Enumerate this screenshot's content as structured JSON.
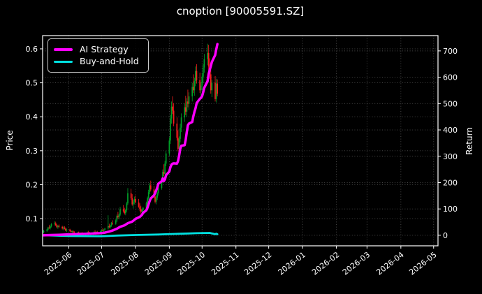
{
  "title": "cnoption [90005591.SZ]",
  "legend": {
    "items": [
      {
        "label": "AI Strategy",
        "color": "#ff00ff"
      },
      {
        "label": "Buy-and-Hold",
        "color": "#00e0e0"
      }
    ]
  },
  "chart_data": {
    "type": "candlestick+line",
    "title": "cnoption [90005591.SZ]",
    "grid": true,
    "legend_position": "upper-left",
    "x_axis": {
      "range": [
        "2025-05-08",
        "2026-05-05"
      ],
      "tick_labels": [
        "2025-06",
        "2025-07",
        "2025-08",
        "2025-09",
        "2025-10",
        "2025-11",
        "2025-12",
        "2026-01",
        "2026-02",
        "2026-03",
        "2026-04",
        "2026-05"
      ]
    },
    "price_axis": {
      "label": "Price",
      "side": "left",
      "tick_labels": [
        "0.1",
        "0.2",
        "0.3",
        "0.4",
        "0.5",
        "0.6"
      ],
      "ticks": [
        0.1,
        0.2,
        0.3,
        0.4,
        0.5,
        0.6
      ],
      "range": [
        0.02,
        0.639
      ]
    },
    "return_axis": {
      "label": "Return",
      "side": "right",
      "ticks": [
        0,
        100,
        200,
        300,
        400,
        500,
        600,
        700
      ],
      "range": [
        -40,
        758
      ]
    },
    "colors": {
      "up_candle": "#00a028",
      "down_candle": "#fa1e1e",
      "grid": "rgba(255,255,255,0.30)",
      "spine": "#ffffff",
      "background": "#000000",
      "text": "#ffffff"
    },
    "candle_columns": [
      "date",
      "open",
      "high",
      "low",
      "close"
    ],
    "candles": [
      [
        "2025-05-09",
        0.06,
        0.067,
        0.057,
        0.064
      ],
      [
        "2025-05-12",
        0.064,
        0.07,
        0.061,
        0.068
      ],
      [
        "2025-05-13",
        0.068,
        0.076,
        0.065,
        0.074
      ],
      [
        "2025-05-14",
        0.074,
        0.082,
        0.07,
        0.072
      ],
      [
        "2025-05-15",
        0.072,
        0.079,
        0.068,
        0.077
      ],
      [
        "2025-05-16",
        0.077,
        0.087,
        0.074,
        0.084
      ],
      [
        "2025-05-19",
        0.084,
        0.092,
        0.08,
        0.086
      ],
      [
        "2025-05-20",
        0.086,
        0.091,
        0.078,
        0.081
      ],
      [
        "2025-05-21",
        0.081,
        0.085,
        0.072,
        0.075
      ],
      [
        "2025-05-22",
        0.075,
        0.081,
        0.07,
        0.079
      ],
      [
        "2025-05-23",
        0.079,
        0.083,
        0.073,
        0.076
      ],
      [
        "2025-05-26",
        0.076,
        0.079,
        0.068,
        0.071
      ],
      [
        "2025-05-27",
        0.071,
        0.077,
        0.066,
        0.074
      ],
      [
        "2025-05-28",
        0.074,
        0.078,
        0.068,
        0.07
      ],
      [
        "2025-05-29",
        0.07,
        0.074,
        0.063,
        0.066
      ],
      [
        "2025-05-30",
        0.066,
        0.071,
        0.061,
        0.068
      ],
      [
        "2025-06-02",
        0.068,
        0.07,
        0.062,
        0.064
      ],
      [
        "2025-06-03",
        0.064,
        0.067,
        0.059,
        0.061
      ],
      [
        "2025-06-04",
        0.061,
        0.065,
        0.057,
        0.063
      ],
      [
        "2025-06-05",
        0.063,
        0.066,
        0.058,
        0.06
      ],
      [
        "2025-06-06",
        0.06,
        0.063,
        0.055,
        0.057
      ],
      [
        "2025-06-09",
        0.057,
        0.061,
        0.054,
        0.059
      ],
      [
        "2025-06-10",
        0.059,
        0.062,
        0.056,
        0.057
      ],
      [
        "2025-06-11",
        0.057,
        0.06,
        0.054,
        0.056
      ],
      [
        "2025-06-12",
        0.056,
        0.059,
        0.053,
        0.058
      ],
      [
        "2025-06-13",
        0.058,
        0.061,
        0.055,
        0.056
      ],
      [
        "2025-06-16",
        0.056,
        0.058,
        0.053,
        0.055
      ],
      [
        "2025-06-17",
        0.055,
        0.059,
        0.053,
        0.057
      ],
      [
        "2025-06-18",
        0.057,
        0.062,
        0.055,
        0.06
      ],
      [
        "2025-06-19",
        0.06,
        0.064,
        0.057,
        0.058
      ],
      [
        "2025-06-20",
        0.058,
        0.061,
        0.055,
        0.057
      ],
      [
        "2025-06-23",
        0.057,
        0.06,
        0.054,
        0.058
      ],
      [
        "2025-06-24",
        0.058,
        0.063,
        0.056,
        0.061
      ],
      [
        "2025-06-25",
        0.061,
        0.066,
        0.058,
        0.059
      ],
      [
        "2025-06-26",
        0.059,
        0.063,
        0.056,
        0.061
      ],
      [
        "2025-06-27",
        0.061,
        0.064,
        0.058,
        0.06
      ],
      [
        "2025-06-30",
        0.06,
        0.065,
        0.058,
        0.063
      ],
      [
        "2025-07-01",
        0.063,
        0.068,
        0.06,
        0.066
      ],
      [
        "2025-07-02",
        0.066,
        0.072,
        0.063,
        0.064
      ],
      [
        "2025-07-03",
        0.064,
        0.069,
        0.061,
        0.067
      ],
      [
        "2025-07-04",
        0.067,
        0.073,
        0.064,
        0.071
      ],
      [
        "2025-07-07",
        0.071,
        0.11,
        0.068,
        0.078
      ],
      [
        "2025-07-08",
        0.078,
        0.085,
        0.072,
        0.075
      ],
      [
        "2025-07-09",
        0.075,
        0.082,
        0.071,
        0.08
      ],
      [
        "2025-07-10",
        0.08,
        0.09,
        0.076,
        0.087
      ],
      [
        "2025-07-11",
        0.087,
        0.095,
        0.082,
        0.085
      ],
      [
        "2025-07-14",
        0.085,
        0.098,
        0.082,
        0.095
      ],
      [
        "2025-07-15",
        0.095,
        0.112,
        0.09,
        0.108
      ],
      [
        "2025-07-16",
        0.108,
        0.12,
        0.1,
        0.104
      ],
      [
        "2025-07-17",
        0.104,
        0.115,
        0.098,
        0.112
      ],
      [
        "2025-07-18",
        0.112,
        0.135,
        0.108,
        0.128
      ],
      [
        "2025-07-21",
        0.128,
        0.14,
        0.118,
        0.122
      ],
      [
        "2025-07-22",
        0.122,
        0.132,
        0.112,
        0.116
      ],
      [
        "2025-07-23",
        0.116,
        0.128,
        0.11,
        0.125
      ],
      [
        "2025-07-24",
        0.125,
        0.15,
        0.12,
        0.145
      ],
      [
        "2025-07-25",
        0.145,
        0.19,
        0.14,
        0.175
      ],
      [
        "2025-07-28",
        0.175,
        0.188,
        0.155,
        0.16
      ],
      [
        "2025-07-29",
        0.16,
        0.172,
        0.138,
        0.142
      ],
      [
        "2025-07-30",
        0.142,
        0.155,
        0.13,
        0.15
      ],
      [
        "2025-07-31",
        0.15,
        0.165,
        0.142,
        0.158
      ],
      [
        "2025-08-01",
        0.158,
        0.168,
        0.145,
        0.148
      ],
      [
        "2025-08-04",
        0.148,
        0.158,
        0.132,
        0.135
      ],
      [
        "2025-08-05",
        0.135,
        0.145,
        0.122,
        0.128
      ],
      [
        "2025-08-06",
        0.128,
        0.138,
        0.115,
        0.12
      ],
      [
        "2025-08-07",
        0.12,
        0.13,
        0.112,
        0.126
      ],
      [
        "2025-08-08",
        0.126,
        0.135,
        0.118,
        0.132
      ],
      [
        "2025-08-11",
        0.132,
        0.15,
        0.128,
        0.146
      ],
      [
        "2025-08-12",
        0.146,
        0.165,
        0.14,
        0.16
      ],
      [
        "2025-08-13",
        0.16,
        0.185,
        0.155,
        0.178
      ],
      [
        "2025-08-14",
        0.178,
        0.205,
        0.172,
        0.198
      ],
      [
        "2025-08-15",
        0.198,
        0.212,
        0.18,
        0.186
      ],
      [
        "2025-08-18",
        0.186,
        0.196,
        0.16,
        0.165
      ],
      [
        "2025-08-19",
        0.165,
        0.175,
        0.145,
        0.15
      ],
      [
        "2025-08-20",
        0.15,
        0.168,
        0.142,
        0.162
      ],
      [
        "2025-08-21",
        0.162,
        0.18,
        0.155,
        0.175
      ],
      [
        "2025-08-22",
        0.175,
        0.195,
        0.168,
        0.19
      ],
      [
        "2025-08-25",
        0.19,
        0.22,
        0.185,
        0.212
      ],
      [
        "2025-08-26",
        0.212,
        0.245,
        0.205,
        0.238
      ],
      [
        "2025-08-27",
        0.238,
        0.26,
        0.225,
        0.232
      ],
      [
        "2025-08-28",
        0.232,
        0.27,
        0.228,
        0.262
      ],
      [
        "2025-08-29",
        0.262,
        0.3,
        0.255,
        0.292
      ],
      [
        "2025-09-01",
        0.292,
        0.34,
        0.285,
        0.33
      ],
      [
        "2025-09-02",
        0.33,
        0.405,
        0.32,
        0.395
      ],
      [
        "2025-09-03",
        0.395,
        0.445,
        0.38,
        0.43
      ],
      [
        "2025-09-04",
        0.43,
        0.46,
        0.408,
        0.418
      ],
      [
        "2025-09-05",
        0.418,
        0.44,
        0.372,
        0.38
      ],
      [
        "2025-09-08",
        0.38,
        0.398,
        0.33,
        0.338
      ],
      [
        "2025-09-09",
        0.338,
        0.36,
        0.298,
        0.305
      ],
      [
        "2025-09-10",
        0.305,
        0.342,
        0.295,
        0.335
      ],
      [
        "2025-09-11",
        0.335,
        0.38,
        0.325,
        0.368
      ],
      [
        "2025-09-12",
        0.368,
        0.41,
        0.355,
        0.398
      ],
      [
        "2025-09-15",
        0.398,
        0.44,
        0.385,
        0.428
      ],
      [
        "2025-09-16",
        0.428,
        0.462,
        0.405,
        0.415
      ],
      [
        "2025-09-17",
        0.415,
        0.455,
        0.4,
        0.445
      ],
      [
        "2025-09-18",
        0.445,
        0.48,
        0.428,
        0.438
      ],
      [
        "2025-09-19",
        0.438,
        0.472,
        0.42,
        0.46
      ],
      [
        "2025-09-22",
        0.46,
        0.5,
        0.445,
        0.488
      ],
      [
        "2025-09-23",
        0.488,
        0.525,
        0.47,
        0.478
      ],
      [
        "2025-09-24",
        0.478,
        0.515,
        0.462,
        0.505
      ],
      [
        "2025-09-25",
        0.505,
        0.548,
        0.49,
        0.535
      ],
      [
        "2025-09-26",
        0.535,
        0.555,
        0.498,
        0.508
      ],
      [
        "2025-09-29",
        0.508,
        0.53,
        0.47,
        0.478
      ],
      [
        "2025-09-30",
        0.478,
        0.502,
        0.458,
        0.492
      ],
      [
        "2025-10-01",
        0.492,
        0.528,
        0.478,
        0.518
      ],
      [
        "2025-10-02",
        0.518,
        0.555,
        0.5,
        0.545
      ],
      [
        "2025-10-03",
        0.545,
        0.585,
        0.53,
        0.57
      ],
      [
        "2025-10-06",
        0.57,
        0.615,
        0.552,
        0.588
      ],
      [
        "2025-10-07",
        0.588,
        0.612,
        0.538,
        0.548
      ],
      [
        "2025-10-08",
        0.548,
        0.572,
        0.512,
        0.525
      ],
      [
        "2025-10-09",
        0.525,
        0.54,
        0.468,
        0.478
      ],
      [
        "2025-10-10",
        0.478,
        0.508,
        0.458,
        0.5
      ],
      [
        "2025-10-13",
        0.5,
        0.52,
        0.445,
        0.452
      ],
      [
        "2025-10-14",
        0.452,
        0.512,
        0.442,
        0.498
      ],
      [
        "2025-10-15",
        0.498,
        0.51,
        0.46,
        0.468
      ]
    ],
    "series": [
      {
        "name": "AI Strategy",
        "axis": "return",
        "color": "#ff00ff",
        "width": 3.5,
        "points": [
          [
            "2025-05-09",
            0
          ],
          [
            "2025-05-16",
            1
          ],
          [
            "2025-05-23",
            2
          ],
          [
            "2025-05-30",
            3
          ],
          [
            "2025-06-06",
            4
          ],
          [
            "2025-06-13",
            5
          ],
          [
            "2025-06-20",
            6
          ],
          [
            "2025-06-30",
            8
          ],
          [
            "2025-07-04",
            10
          ],
          [
            "2025-07-08",
            14
          ],
          [
            "2025-07-11",
            18
          ],
          [
            "2025-07-15",
            25
          ],
          [
            "2025-07-18",
            32
          ],
          [
            "2025-07-22",
            38
          ],
          [
            "2025-07-25",
            46
          ],
          [
            "2025-07-29",
            52
          ],
          [
            "2025-07-31",
            58
          ],
          [
            "2025-08-01",
            62
          ],
          [
            "2025-08-05",
            70
          ],
          [
            "2025-08-07",
            78
          ],
          [
            "2025-08-08",
            85
          ],
          [
            "2025-08-11",
            95
          ],
          [
            "2025-08-12",
            105
          ],
          [
            "2025-08-13",
            118
          ],
          [
            "2025-08-14",
            130
          ],
          [
            "2025-08-15",
            140
          ],
          [
            "2025-08-18",
            152
          ],
          [
            "2025-08-19",
            160
          ],
          [
            "2025-08-20",
            170
          ],
          [
            "2025-08-21",
            182
          ],
          [
            "2025-08-22",
            196
          ],
          [
            "2025-08-25",
            205
          ],
          [
            "2025-08-26",
            216
          ],
          [
            "2025-08-27",
            206
          ],
          [
            "2025-08-28",
            212
          ],
          [
            "2025-08-29",
            228
          ],
          [
            "2025-09-01",
            242
          ],
          [
            "2025-09-02",
            258
          ],
          [
            "2025-09-03",
            268
          ],
          [
            "2025-09-04",
            272
          ],
          [
            "2025-09-05",
            273
          ],
          [
            "2025-09-08",
            272
          ],
          [
            "2025-09-09",
            282
          ],
          [
            "2025-09-10",
            302
          ],
          [
            "2025-09-11",
            328
          ],
          [
            "2025-09-12",
            340
          ],
          [
            "2025-09-15",
            342
          ],
          [
            "2025-09-16",
            362
          ],
          [
            "2025-09-17",
            392
          ],
          [
            "2025-09-18",
            418
          ],
          [
            "2025-09-19",
            424
          ],
          [
            "2025-09-22",
            430
          ],
          [
            "2025-09-23",
            452
          ],
          [
            "2025-09-24",
            468
          ],
          [
            "2025-09-25",
            482
          ],
          [
            "2025-09-26",
            502
          ],
          [
            "2025-09-29",
            518
          ],
          [
            "2025-09-30",
            522
          ],
          [
            "2025-10-01",
            528
          ],
          [
            "2025-10-02",
            542
          ],
          [
            "2025-10-03",
            560
          ],
          [
            "2025-10-06",
            585
          ],
          [
            "2025-10-07",
            612
          ],
          [
            "2025-10-08",
            628
          ],
          [
            "2025-10-09",
            642
          ],
          [
            "2025-10-10",
            658
          ],
          [
            "2025-10-13",
            684
          ],
          [
            "2025-10-14",
            706
          ],
          [
            "2025-10-15",
            726
          ]
        ]
      },
      {
        "name": "Buy-and-Hold",
        "axis": "return",
        "color": "#00e0e0",
        "width": 2.8,
        "points": [
          [
            "2025-05-09",
            0
          ],
          [
            "2025-06-02",
            -3
          ],
          [
            "2025-06-30",
            -4
          ],
          [
            "2025-07-15",
            -1
          ],
          [
            "2025-08-01",
            1
          ],
          [
            "2025-08-22",
            3
          ],
          [
            "2025-09-05",
            5
          ],
          [
            "2025-09-19",
            7
          ],
          [
            "2025-09-26",
            8
          ],
          [
            "2025-10-08",
            9
          ],
          [
            "2025-10-10",
            7
          ],
          [
            "2025-10-13",
            4
          ],
          [
            "2025-10-14",
            6
          ],
          [
            "2025-10-15",
            4
          ]
        ]
      }
    ]
  }
}
